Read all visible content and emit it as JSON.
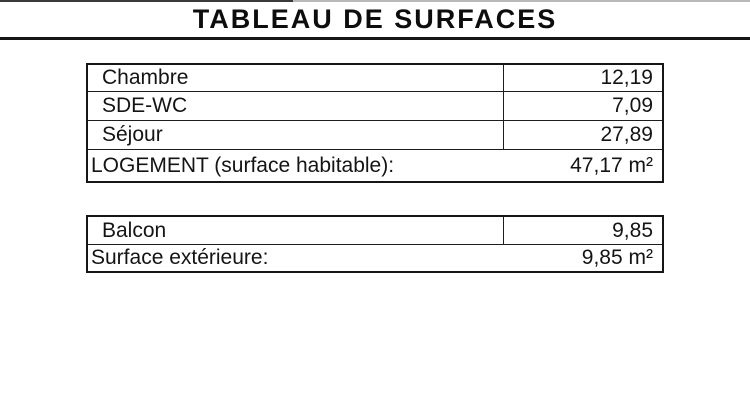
{
  "page": {
    "title": "TABLEAU DE SURFACES"
  },
  "tables": [
    {
      "name": "logement",
      "rows": [
        {
          "label": "Chambre",
          "value": "12,19"
        },
        {
          "label": "SDE-WC",
          "value": "7,09"
        },
        {
          "label": "Séjour",
          "value": "27,89"
        }
      ],
      "total": {
        "label": "LOGEMENT (surface habitable):",
        "value": "47,17 m²"
      }
    },
    {
      "name": "exterieure",
      "rows": [
        {
          "label": "Balcon",
          "value": "9,85"
        }
      ],
      "total": {
        "label": "Surface extérieure:",
        "value": "9,85 m²"
      }
    }
  ],
  "colors": {
    "border": "#161616",
    "text": "#141414",
    "top_edge_dark": "#3a3a3a",
    "top_edge_light": "#b8b8b8"
  }
}
